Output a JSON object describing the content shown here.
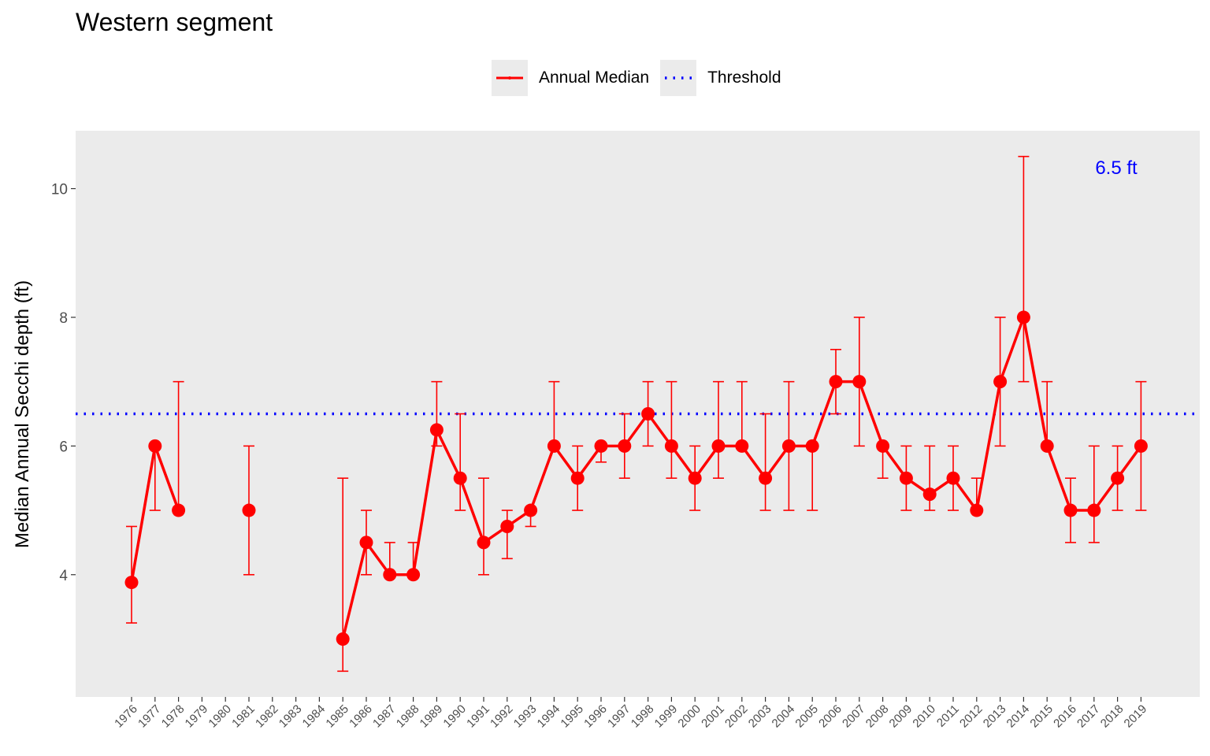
{
  "chart_data": {
    "type": "line",
    "title": "Western segment",
    "xlabel": "",
    "ylabel": "Median Annual Secchi depth (ft)",
    "ylim": [
      2.1,
      10.9
    ],
    "y_ticks": [
      4,
      6,
      8,
      10
    ],
    "categories": [
      "1976",
      "1977",
      "1978",
      "1979",
      "1980",
      "1981",
      "1982",
      "1983",
      "1984",
      "1985",
      "1986",
      "1987",
      "1988",
      "1989",
      "1990",
      "1991",
      "1992",
      "1993",
      "1994",
      "1995",
      "1996",
      "1997",
      "1998",
      "1999",
      "2000",
      "2001",
      "2002",
      "2003",
      "2004",
      "2005",
      "2006",
      "2007",
      "2008",
      "2009",
      "2010",
      "2011",
      "2012",
      "2013",
      "2014",
      "2015",
      "2016",
      "2017",
      "2018",
      "2019"
    ],
    "series": [
      {
        "name": "Annual Median",
        "color": "#ff0000",
        "values": [
          3.88,
          6.0,
          5.0,
          null,
          null,
          5.0,
          null,
          null,
          null,
          3.0,
          4.5,
          4.0,
          4.0,
          6.25,
          5.5,
          4.5,
          4.75,
          5.0,
          6.0,
          5.5,
          6.0,
          6.0,
          6.5,
          6.0,
          5.5,
          6.0,
          6.0,
          5.5,
          6.0,
          6.0,
          7.0,
          7.0,
          6.0,
          5.5,
          5.25,
          5.5,
          5.0,
          7.0,
          8.0,
          6.0,
          5.0,
          5.0,
          5.5,
          6.0
        ],
        "lower": [
          3.25,
          5.0,
          5.0,
          null,
          null,
          4.0,
          null,
          null,
          null,
          2.5,
          4.0,
          4.0,
          4.0,
          6.0,
          5.0,
          4.0,
          4.25,
          4.75,
          6.0,
          5.0,
          5.75,
          5.5,
          6.0,
          5.5,
          5.0,
          5.5,
          6.0,
          5.0,
          5.0,
          5.0,
          6.5,
          6.0,
          5.5,
          5.0,
          5.0,
          5.0,
          5.0,
          6.0,
          7.0,
          6.0,
          4.5,
          4.5,
          5.0,
          5.0
        ],
        "upper": [
          4.75,
          6.0,
          7.0,
          null,
          null,
          6.0,
          null,
          null,
          null,
          5.5,
          5.0,
          4.5,
          4.5,
          7.0,
          6.5,
          5.5,
          5.0,
          5.0,
          7.0,
          6.0,
          6.0,
          6.5,
          7.0,
          7.0,
          6.0,
          7.0,
          7.0,
          6.5,
          7.0,
          6.0,
          7.5,
          8.0,
          6.0,
          6.0,
          6.0,
          6.0,
          5.5,
          8.0,
          10.5,
          7.0,
          5.5,
          6.0,
          6.0,
          7.0
        ]
      },
      {
        "name": "Threshold",
        "color": "#0000ff",
        "style": "dotted",
        "value": 6.5
      }
    ],
    "annotation": {
      "text": "6.5 ft",
      "color": "#0000ff",
      "position": "top-right"
    },
    "legend": {
      "position": "top",
      "items": [
        "Annual Median",
        "Threshold"
      ]
    },
    "panel_background": "#ebebeb",
    "grid": false
  }
}
